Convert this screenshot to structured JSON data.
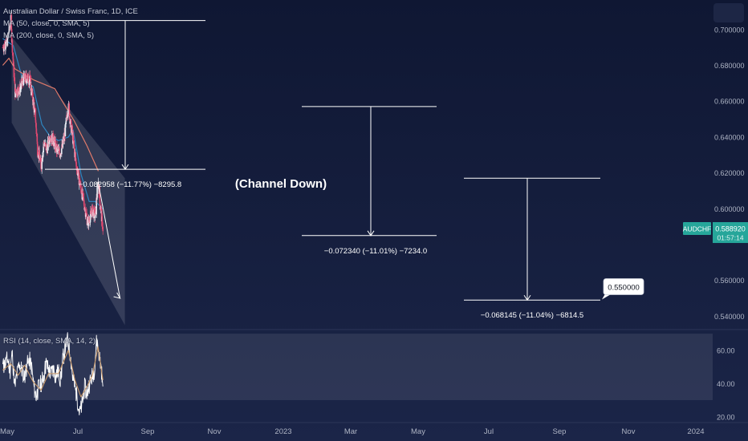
{
  "header": {
    "instrument": "Australian Dollar / Swiss Franc, 1D, ICE",
    "ma50": "MA (50, close, 0, SMA, 5)",
    "ma200": "MA (200, close, 0, SMA, 5)",
    "rsi": "RSI (14, close, SMA, 14, 2)"
  },
  "colors": {
    "background": "#131c3a",
    "candle_up": "#e8ecf2",
    "candle_down": "#e0486f",
    "ma50": "#2e86c1",
    "ma200": "#e07a6a",
    "channel": "#ffffff",
    "rsi_line": "#ffffff",
    "rsi_ma": "#c99a6b",
    "price_badge": "#26a69a"
  },
  "chart_data": [
    {
      "type": "line",
      "title": "Australian Dollar / Swiss Franc, 1D, ICE",
      "x_labels": [
        "May",
        "Jul",
        "Sep",
        "Nov",
        "2023",
        "Mar",
        "May",
        "Jul",
        "Sep",
        "Nov",
        "2024"
      ],
      "y_ticks": [
        "0.700000",
        "0.680000",
        "0.660000",
        "0.640000",
        "0.620000",
        "0.600000",
        "0.560000",
        "0.540000"
      ],
      "ylim": [
        0.533,
        0.712
      ],
      "price": {
        "name": "AUDCHF",
        "x": [
          "2022-04-29",
          "2022-05-18",
          "2022-06-03",
          "2022-06-22",
          "2022-07-13",
          "2022-07-28",
          "2022-08-12",
          "2022-08-25",
          "2022-09-07",
          "2022-09-19",
          "2022-09-28",
          "2022-10-06",
          "2022-10-13",
          "2022-10-26",
          "2022-11-07",
          "2022-11-22",
          "2022-12-06",
          "2022-12-20",
          "2023-01-03",
          "2023-01-13",
          "2023-01-26",
          "2023-02-09",
          "2023-02-21",
          "2023-03-02",
          "2023-03-13",
          "2023-03-27",
          "2023-04-17",
          "2023-05-05",
          "2023-05-25",
          "2023-06-07",
          "2023-06-19",
          "2023-06-29",
          "2023-07-10"
        ],
        "y": [
          0.69,
          0.693,
          0.705,
          0.665,
          0.667,
          0.672,
          0.673,
          0.672,
          0.661,
          0.651,
          0.633,
          0.629,
          0.624,
          0.637,
          0.633,
          0.641,
          0.638,
          0.633,
          0.631,
          0.634,
          0.643,
          0.657,
          0.646,
          0.638,
          0.627,
          0.617,
          0.604,
          0.592,
          0.599,
          0.596,
          0.616,
          0.601,
          0.589
        ]
      },
      "series": [
        {
          "name": "MA (50, close, 0, SMA, 5)",
          "x": [
            "2022-04-29",
            "2022-06-14",
            "2022-07-25",
            "2022-09-09",
            "2022-10-17",
            "2022-11-18",
            "2022-12-28",
            "2023-02-09",
            "2023-03-02",
            "2023-04-06",
            "2023-05-11",
            "2023-06-06",
            "2023-07-10"
          ],
          "y": [
            0.695,
            0.691,
            0.672,
            0.668,
            0.647,
            0.641,
            0.638,
            0.64,
            0.644,
            0.619,
            0.604,
            0.604,
            0.6
          ]
        },
        {
          "name": "MA (200, close, 0, SMA, 5)",
          "x": [
            "2022-04-29",
            "2022-05-26",
            "2022-06-22",
            "2022-09-09",
            "2022-12-12",
            "2023-03-07",
            "2023-05-02",
            "2023-06-20"
          ],
          "y": [
            0.68,
            0.684,
            0.678,
            0.672,
            0.667,
            0.649,
            0.635,
            0.621
          ]
        }
      ],
      "channel": {
        "upper": [
          {
            "x": "2022-06-07",
            "y": 0.696
          },
          {
            "x": "2023-10-14",
            "y": 0.617
          }
        ],
        "lower": [
          {
            "x": "2022-06-07",
            "y": 0.648
          },
          {
            "x": "2023-10-14",
            "y": 0.535
          }
        ]
      },
      "annotations": {
        "pattern_label": "(Channel Down)",
        "measurements": [
          {
            "label": "−0.082958 (−11.77%) −8295.8",
            "from": {
              "x": "2022-06-03",
              "y": 0.705
            },
            "to": {
              "x": "2022-10-13",
              "y": 0.622
            }
          },
          {
            "label": "−0.072340 (−11.01%) −7234.0",
            "from": {
              "x": "2023-01-16",
              "y": 0.657
            },
            "to": {
              "x": "2023-05-11",
              "y": 0.585
            }
          },
          {
            "label": "−0.068145 (−11.04%) −6814.5",
            "from": {
              "x": "2023-06-06",
              "y": 0.617
            },
            "to": {
              "x": "2023-09-20",
              "y": 0.549
            }
          }
        ],
        "target_label": "0.550000",
        "projection": {
          "from": {
            "x": "2023-06-19",
            "y": 0.615
          },
          "to": {
            "x": "2023-09-23",
            "y": 0.55
          }
        }
      },
      "last_price": {
        "symbol": "AUDCHF",
        "value": "0.588920",
        "countdown": "01:57:14"
      }
    },
    {
      "type": "line",
      "title": "RSI (14, close, SMA, 14, 2)",
      "y_ticks": [
        "60.00",
        "40.00",
        "20.00"
      ],
      "ylim": [
        17,
        72
      ],
      "band": [
        30,
        70
      ],
      "series": [
        {
          "name": "RSI",
          "x": [
            "2022-04-29",
            "2022-05-10",
            "2022-05-20",
            "2022-05-31",
            "2022-06-09",
            "2022-06-21",
            "2022-07-01",
            "2022-07-11",
            "2022-07-21",
            "2022-08-02",
            "2022-08-11",
            "2022-08-22",
            "2022-09-01",
            "2022-09-12",
            "2022-09-22",
            "2022-10-03",
            "2022-10-13",
            "2022-10-24",
            "2022-11-04",
            "2022-11-15",
            "2022-11-25",
            "2022-12-06",
            "2022-12-16",
            "2022-12-27",
            "2023-01-06",
            "2023-01-17",
            "2023-01-27",
            "2023-02-07",
            "2023-02-17",
            "2023-02-28",
            "2023-03-10",
            "2023-03-21",
            "2023-03-31",
            "2023-04-11",
            "2023-04-21",
            "2023-05-02",
            "2023-05-12",
            "2023-05-23",
            "2023-06-02",
            "2023-06-13",
            "2023-06-23",
            "2023-07-04",
            "2023-07-10"
          ],
          "y": [
            50,
            52,
            55,
            48,
            58,
            38,
            46,
            52,
            48,
            44,
            50,
            55,
            50,
            38,
            32,
            38,
            40,
            44,
            52,
            48,
            46,
            49,
            44,
            48,
            42,
            55,
            62,
            66,
            58,
            44,
            38,
            30,
            22,
            28,
            38,
            34,
            40,
            44,
            48,
            66,
            58,
            48,
            34
          ]
        },
        {
          "name": "RSI-based MA",
          "x": [
            "2022-04-29",
            "2022-06-03",
            "2022-07-05",
            "2022-08-02",
            "2022-09-09",
            "2022-10-13",
            "2022-11-15",
            "2022-12-28",
            "2023-02-09",
            "2023-03-10",
            "2023-04-05",
            "2023-05-01",
            "2023-05-25",
            "2023-06-19",
            "2023-07-10"
          ],
          "y": [
            48,
            52,
            45,
            51,
            41,
            36,
            46,
            46,
            60,
            42,
            32,
            38,
            45,
            62,
            42
          ]
        }
      ]
    }
  ]
}
